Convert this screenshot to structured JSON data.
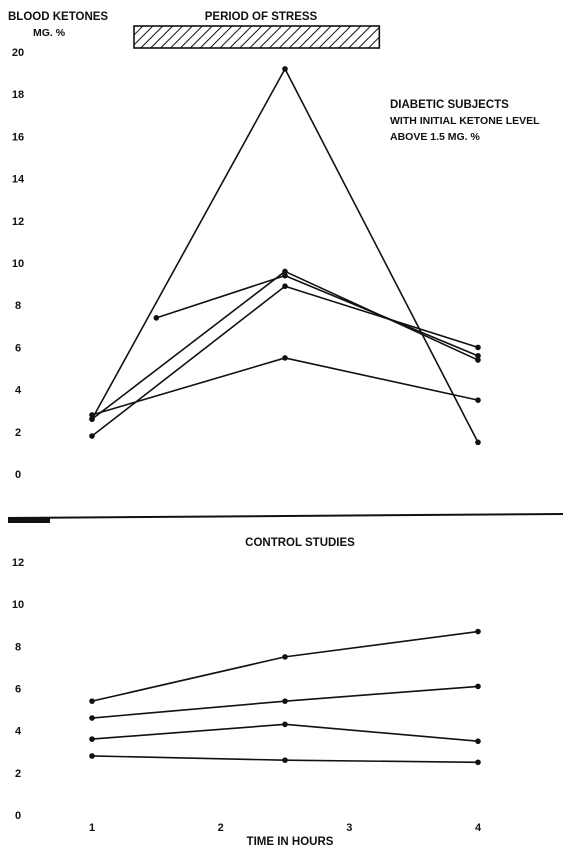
{
  "colors": {
    "ink": "#111111",
    "paper": "#ffffff"
  },
  "chart_data": [
    {
      "type": "line",
      "ylabel_line1": "BLOOD KETONES",
      "ylabel_line2": "MG. %",
      "stress_label": "PERIOD OF STRESS",
      "stress_period": [
        1,
        3
      ],
      "annotation": [
        "DIABETIC SUBJECTS",
        "WITH INITIAL KETONE LEVEL",
        "ABOVE 1.5 MG. %"
      ],
      "yticks": [
        "0",
        "2",
        "4",
        "6",
        "8",
        "10",
        "12",
        "14",
        "16",
        "18",
        "20"
      ],
      "ylim": [
        0,
        20
      ],
      "xlim": [
        1,
        4
      ],
      "grid": false,
      "series": [
        {
          "x": [
            1,
            2.5,
            4
          ],
          "values": [
            2.6,
            19.2,
            1.5
          ]
        },
        {
          "x": [
            1.5,
            2.5,
            4
          ],
          "values": [
            7.4,
            9.4,
            5.6
          ]
        },
        {
          "x": [
            1,
            2.5,
            4
          ],
          "values": [
            2.6,
            9.6,
            5.4
          ]
        },
        {
          "x": [
            1,
            2.5,
            4
          ],
          "values": [
            1.8,
            8.9,
            6.0
          ]
        },
        {
          "x": [
            1,
            2.5,
            4
          ],
          "values": [
            2.8,
            5.5,
            3.5
          ]
        }
      ]
    },
    {
      "type": "line",
      "title": "CONTROL STUDIES",
      "xlabel": "TIME IN HOURS",
      "xticks": [
        "1",
        "2",
        "3",
        "4"
      ],
      "yticks": [
        "0",
        "2",
        "4",
        "6",
        "8",
        "10",
        "12"
      ],
      "ylim": [
        0,
        12
      ],
      "xlim": [
        1,
        4
      ],
      "grid": false,
      "series": [
        {
          "x": [
            1,
            2.5,
            4
          ],
          "values": [
            5.4,
            7.5,
            8.7
          ]
        },
        {
          "x": [
            1,
            2.5,
            4
          ],
          "values": [
            4.6,
            5.4,
            6.1
          ]
        },
        {
          "x": [
            1,
            2.5,
            4
          ],
          "values": [
            3.6,
            4.3,
            3.5
          ]
        },
        {
          "x": [
            1,
            2.5,
            4
          ],
          "values": [
            2.8,
            2.6,
            2.5
          ]
        }
      ]
    }
  ]
}
